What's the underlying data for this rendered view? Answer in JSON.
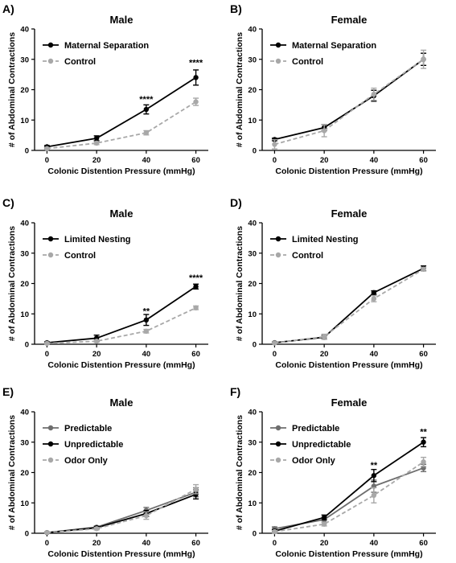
{
  "chart_data": [
    {
      "type": "line",
      "letter": "A)",
      "title": "Male",
      "xlabel": "Colonic Distention Pressure (mmHg)",
      "ylabel": "# of Abdominal Contractions",
      "x": [
        0,
        20,
        40,
        60
      ],
      "xlim": [
        -5,
        65
      ],
      "ylim": [
        0,
        40
      ],
      "yticks": [
        0,
        10,
        20,
        30,
        40
      ],
      "legend_position": "top-left",
      "series": [
        {
          "name": "Maternal Separation",
          "color": "#000000",
          "dashed": false,
          "values": [
            1.2,
            4,
            13.5,
            24
          ],
          "errors": [
            0.4,
            0.8,
            1.5,
            2.5
          ]
        },
        {
          "name": "Control",
          "color": "#a8a8a8",
          "dashed": true,
          "values": [
            0.6,
            2.4,
            5.8,
            16
          ],
          "errors": [
            0.3,
            0.5,
            0.7,
            1.2
          ]
        }
      ],
      "annotations": [
        {
          "x": 40,
          "y": 17,
          "text": "****"
        },
        {
          "x": 60,
          "y": 29,
          "text": "****"
        }
      ]
    },
    {
      "type": "line",
      "letter": "B)",
      "title": "Female",
      "xlabel": "Colonic Distention Pressure (mmHg)",
      "ylabel": "# of Abdominal Contractions",
      "x": [
        0,
        20,
        40,
        60
      ],
      "xlim": [
        -5,
        65
      ],
      "ylim": [
        0,
        40
      ],
      "yticks": [
        0,
        10,
        20,
        30,
        40
      ],
      "legend_position": "top-left",
      "series": [
        {
          "name": "Maternal Separation",
          "color": "#000000",
          "dashed": false,
          "values": [
            3.6,
            7.5,
            18,
            30
          ],
          "errors": [
            0.4,
            1.0,
            1.8,
            2.0
          ]
        },
        {
          "name": "Control",
          "color": "#a8a8a8",
          "dashed": true,
          "values": [
            2,
            6.5,
            18.5,
            30
          ],
          "errors": [
            1.5,
            2.0,
            2.0,
            3.0
          ]
        }
      ],
      "annotations": []
    },
    {
      "type": "line",
      "letter": "C)",
      "title": "Male",
      "xlabel": "Colonic Distention Pressure (mmHg)",
      "ylabel": "# of Abdominal Contractions",
      "x": [
        0,
        20,
        40,
        60
      ],
      "xlim": [
        -5,
        65
      ],
      "ylim": [
        0,
        40
      ],
      "yticks": [
        0,
        10,
        20,
        30,
        40
      ],
      "legend_position": "top-left",
      "series": [
        {
          "name": "Limited Nesting",
          "color": "#000000",
          "dashed": false,
          "values": [
            0.5,
            2,
            8,
            19
          ],
          "errors": [
            0.3,
            1.0,
            1.8,
            0.8
          ]
        },
        {
          "name": "Control",
          "color": "#a8a8a8",
          "dashed": true,
          "values": [
            0.3,
            1,
            4.3,
            12
          ],
          "errors": [
            0.2,
            0.4,
            0.6,
            0.6
          ]
        }
      ],
      "annotations": [
        {
          "x": 40,
          "y": 11,
          "text": "**"
        },
        {
          "x": 60,
          "y": 22,
          "text": "****"
        }
      ]
    },
    {
      "type": "line",
      "letter": "D)",
      "title": "Female",
      "xlabel": "Colonic Distention Pressure (mmHg)",
      "ylabel": "# of Abdominal Contractions",
      "x": [
        0,
        20,
        40,
        60
      ],
      "xlim": [
        -5,
        65
      ],
      "ylim": [
        0,
        40
      ],
      "yticks": [
        0,
        10,
        20,
        30,
        40
      ],
      "legend_position": "top-left",
      "series": [
        {
          "name": "Limited Nesting",
          "color": "#000000",
          "dashed": false,
          "values": [
            0.5,
            2.3,
            17,
            25
          ],
          "errors": [
            0.2,
            0.6,
            0.6,
            0.8
          ]
        },
        {
          "name": "Control",
          "color": "#a8a8a8",
          "dashed": true,
          "values": [
            0.4,
            2.5,
            15,
            24.7
          ],
          "errors": [
            0.2,
            0.8,
            1.0,
            0.6
          ]
        }
      ],
      "annotations": []
    },
    {
      "type": "line",
      "letter": "E)",
      "title": "Male",
      "xlabel": "Colonic Distention Pressure (mmHg)",
      "ylabel": "# of Abdominal Contractions",
      "x": [
        0,
        20,
        40,
        60
      ],
      "xlim": [
        -5,
        65
      ],
      "ylim": [
        0,
        40
      ],
      "yticks": [
        0,
        10,
        20,
        30,
        40
      ],
      "legend_position": "top-left",
      "series": [
        {
          "name": "Predictable",
          "color": "#6e6e6e",
          "dashed": false,
          "values": [
            0.2,
            2,
            7.5,
            13.5
          ],
          "errors": [
            0.2,
            0.4,
            1.0,
            1.5
          ]
        },
        {
          "name": "Unpredictable",
          "color": "#000000",
          "dashed": false,
          "values": [
            0.2,
            1.8,
            6.5,
            12.8
          ],
          "errors": [
            0.2,
            0.4,
            1.0,
            1.5
          ]
        },
        {
          "name": "Odor Only",
          "color": "#a8a8a8",
          "dashed": true,
          "values": [
            0.2,
            1.5,
            5.8,
            14.5
          ],
          "errors": [
            0.2,
            0.4,
            1.2,
            1.5
          ]
        }
      ],
      "annotations": []
    },
    {
      "type": "line",
      "letter": "F)",
      "title": "Female",
      "xlabel": "Colonic Distention Pressure (mmHg)",
      "ylabel": "# of Abdominal Contractions",
      "x": [
        0,
        20,
        40,
        60
      ],
      "xlim": [
        -5,
        65
      ],
      "ylim": [
        0,
        40
      ],
      "yticks": [
        0,
        10,
        20,
        30,
        40
      ],
      "legend_position": "top-left",
      "series": [
        {
          "name": "Predictable",
          "color": "#6e6e6e",
          "dashed": false,
          "values": [
            1.5,
            4.5,
            15.5,
            21.5
          ],
          "errors": [
            0.6,
            0.8,
            2.0,
            1.2
          ]
        },
        {
          "name": "Unpredictable",
          "color": "#000000",
          "dashed": false,
          "values": [
            0.7,
            5.2,
            19,
            30
          ],
          "errors": [
            0.5,
            0.8,
            2.0,
            1.5
          ]
        },
        {
          "name": "Odor Only",
          "color": "#a8a8a8",
          "dashed": true,
          "values": [
            0.5,
            3,
            12.5,
            23.5
          ],
          "errors": [
            0.4,
            0.6,
            2.5,
            1.5
          ]
        }
      ],
      "annotations": [
        {
          "x": 40,
          "y": 22.5,
          "text": "**"
        },
        {
          "x": 60,
          "y": 33.5,
          "text": "**"
        }
      ]
    }
  ]
}
